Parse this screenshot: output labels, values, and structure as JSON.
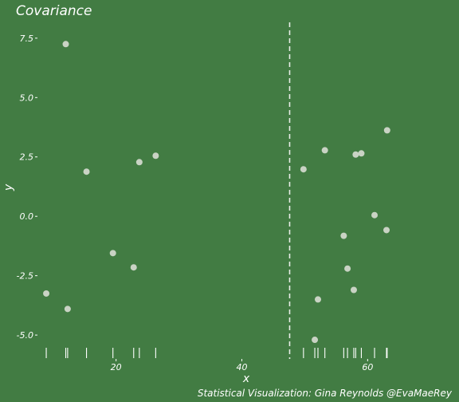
{
  "colors": {
    "background": "#427c43",
    "point": "#c9d3c4",
    "text": "#ffffff",
    "rug": "#ffffff",
    "vline": "#e8ede6"
  },
  "chart_data": {
    "type": "scatter",
    "title": "Covariance",
    "xlabel": "x",
    "ylabel": "y",
    "caption": "Statistical Visualization: Gina Reynolds @EvaMaeRey",
    "xlim": [
      7.5,
      72.5
    ],
    "ylim": [
      -5.4,
      8.2
    ],
    "x_ticks": [
      20,
      40,
      60
    ],
    "y_ticks": [
      -5.0,
      -2.5,
      0.0,
      2.5,
      5.0,
      7.5
    ],
    "y_tick_labels": [
      "-5.0",
      "-2.5",
      "0.0",
      "2.5",
      "5.0",
      "7.5"
    ],
    "grid": false,
    "vline_x": 47.6,
    "rug": true,
    "points": [
      {
        "x": 8.9,
        "y": -3.25
      },
      {
        "x": 12.0,
        "y": 7.25
      },
      {
        "x": 12.3,
        "y": -3.9
      },
      {
        "x": 15.3,
        "y": 1.88
      },
      {
        "x": 19.5,
        "y": -1.55
      },
      {
        "x": 22.8,
        "y": -2.15
      },
      {
        "x": 23.7,
        "y": 2.28
      },
      {
        "x": 26.3,
        "y": 2.55
      },
      {
        "x": 49.8,
        "y": 1.98
      },
      {
        "x": 51.6,
        "y": -5.2
      },
      {
        "x": 52.1,
        "y": -3.5
      },
      {
        "x": 53.2,
        "y": 2.78
      },
      {
        "x": 56.2,
        "y": -0.82
      },
      {
        "x": 56.8,
        "y": -2.2
      },
      {
        "x": 57.8,
        "y": -3.1
      },
      {
        "x": 58.1,
        "y": 2.6
      },
      {
        "x": 59.0,
        "y": 2.65
      },
      {
        "x": 61.1,
        "y": 0.05
      },
      {
        "x": 63.0,
        "y": -0.58
      },
      {
        "x": 63.1,
        "y": 3.62
      }
    ]
  }
}
